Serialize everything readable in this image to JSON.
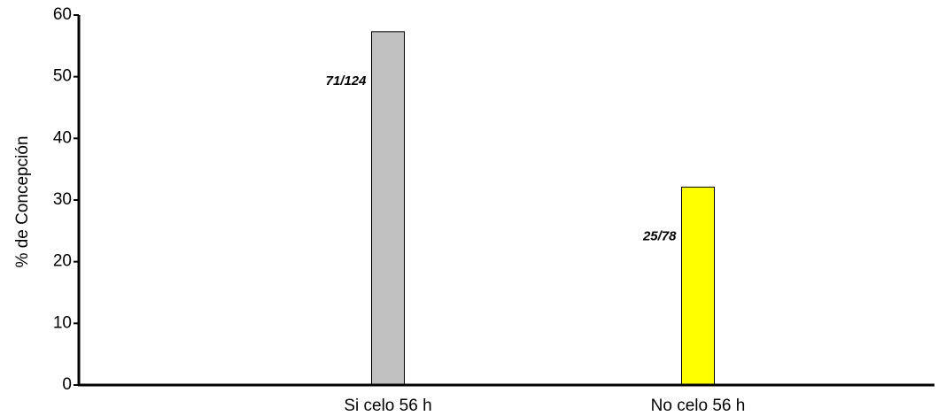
{
  "chart_data": {
    "type": "bar",
    "title": "",
    "xlabel": "",
    "ylabel": "% de Concepción",
    "ylim": [
      0,
      60
    ],
    "yticks": [
      0,
      10,
      20,
      30,
      40,
      50,
      60
    ],
    "grid": false,
    "legend": "none",
    "categories": [
      "Si celo 56 h",
      "No celo 56 h"
    ],
    "values": [
      57.3,
      32.1
    ],
    "bar_labels": [
      "71/124",
      "25/78"
    ],
    "colors": [
      "#c0c0c0",
      "#ffff00"
    ]
  }
}
